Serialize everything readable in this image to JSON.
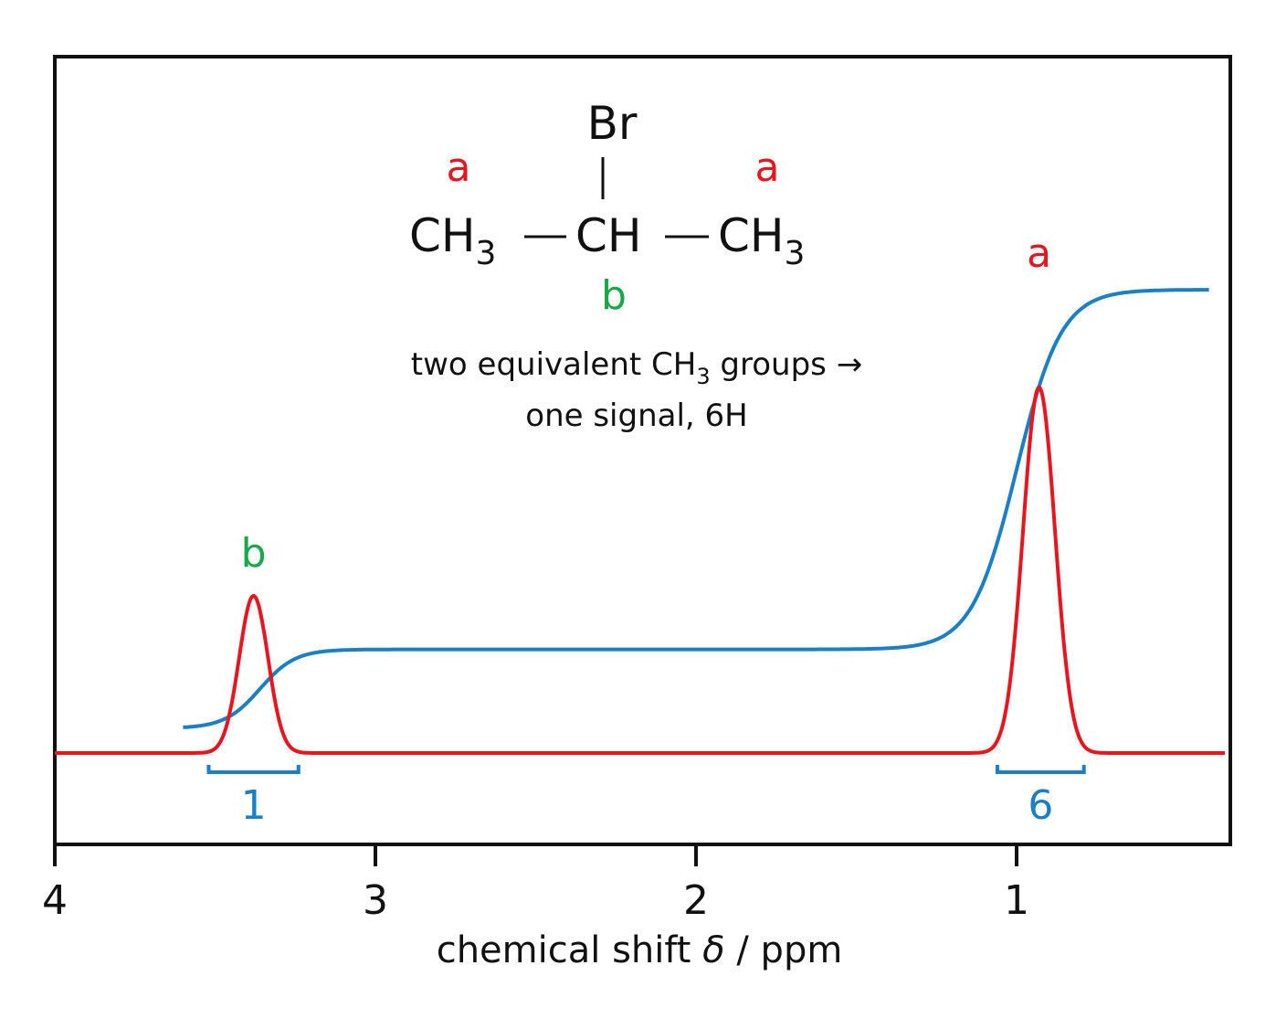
{
  "colors": {
    "spectrum": "#e8151f",
    "integral": "#1a7fc6",
    "label_a": "#e8151f",
    "label_b": "#1aa64a",
    "axis": "#111111"
  },
  "chart_data": {
    "type": "line",
    "xlabel_main": "chemical shift ",
    "xlabel_symbol": "δ",
    "xlabel_unit": " / ppm",
    "xlim": [
      4,
      0.35
    ],
    "x_reversed": true,
    "grid": false,
    "ticks": [
      {
        "value": 4,
        "label": "4"
      },
      {
        "value": 3,
        "label": "3"
      },
      {
        "value": 2,
        "label": "2"
      },
      {
        "value": 1,
        "label": "1"
      }
    ],
    "peaks": [
      {
        "label": "b",
        "shift": 3.38,
        "relative_height": 0.43,
        "width_ppm": 0.045,
        "integral": "1",
        "integral_range": [
          3.52,
          3.24
        ]
      },
      {
        "label": "a",
        "shift": 0.93,
        "relative_height": 1.0,
        "width_ppm": 0.05,
        "integral": "6",
        "integral_range": [
          1.06,
          0.79
        ]
      }
    ],
    "integral_curve": {
      "x_start": 3.6,
      "x_end": 0.4,
      "relative_levels": [
        0.0,
        0.18,
        1.0
      ]
    },
    "annotations": {
      "molecule": {
        "left_group": "CH",
        "left_sub": "3",
        "center_group": "CH",
        "right_group": "CH",
        "right_sub": "3",
        "substituent": "Br",
        "label_left": "a",
        "label_right": "a",
        "label_center": "b"
      },
      "note_line1_pre": "two equivalent CH",
      "note_line1_sub": "3",
      "note_line1_post": " groups →",
      "note_line2": "one signal, 6H"
    }
  }
}
